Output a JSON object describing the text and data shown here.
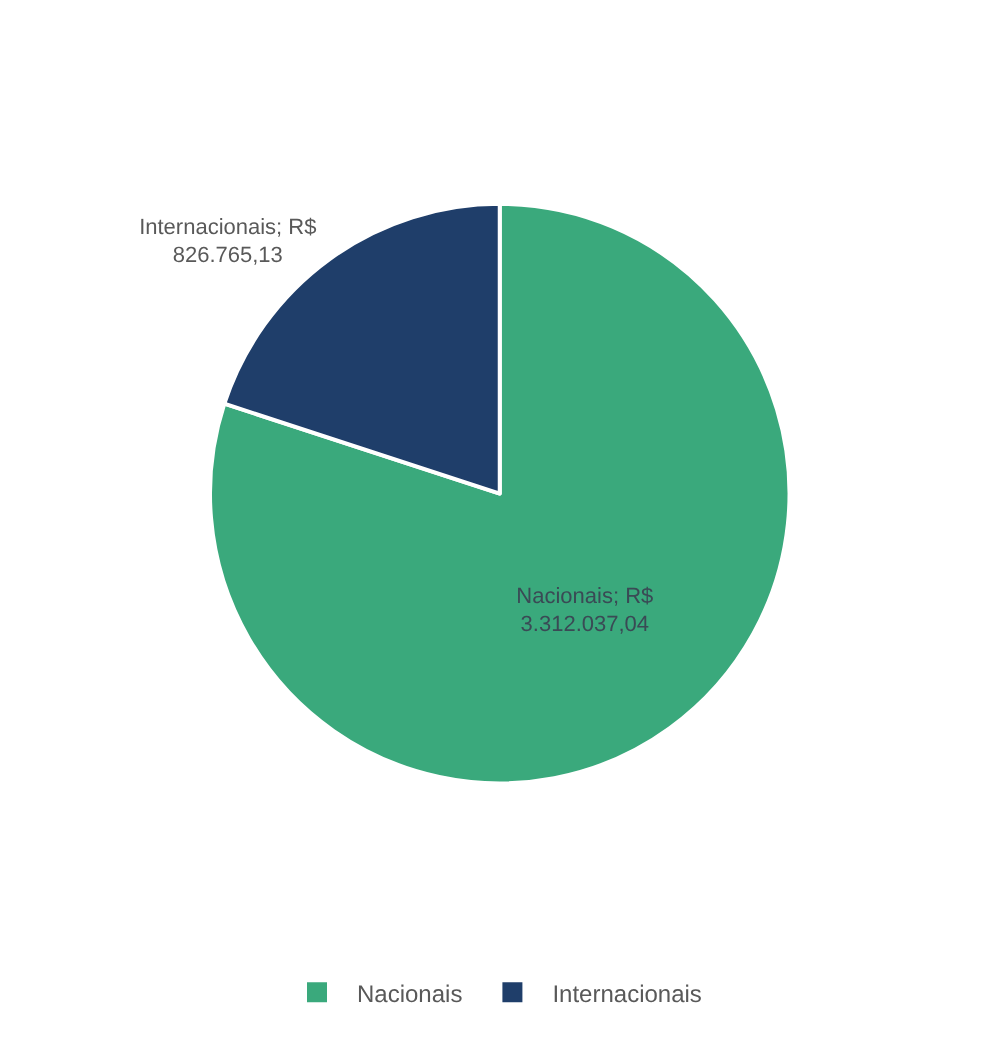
{
  "chart_data": {
    "type": "pie",
    "categories": [
      "Nacionais",
      "Internacionais"
    ],
    "values": [
      3312037.04,
      826765.13
    ],
    "colors": [
      "#3aa97c",
      "#1f3e6a"
    ],
    "value_labels": [
      "Nacionais; R$ 3.312.037,04",
      "Internacionais; R$ 826.765,13"
    ],
    "legend": "bottom"
  }
}
